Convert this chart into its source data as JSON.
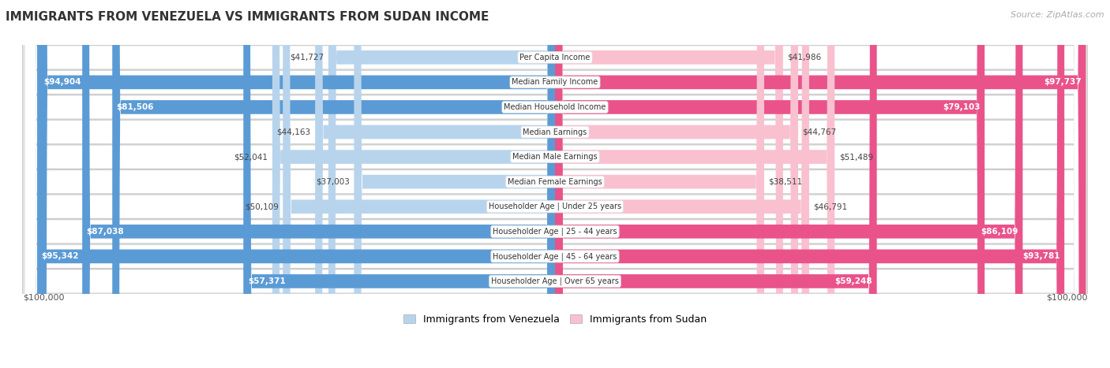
{
  "title": "IMMIGRANTS FROM VENEZUELA VS IMMIGRANTS FROM SUDAN INCOME",
  "source": "Source: ZipAtlas.com",
  "categories": [
    "Per Capita Income",
    "Median Family Income",
    "Median Household Income",
    "Median Earnings",
    "Median Male Earnings",
    "Median Female Earnings",
    "Householder Age | Under 25 years",
    "Householder Age | 25 - 44 years",
    "Householder Age | 45 - 64 years",
    "Householder Age | Over 65 years"
  ],
  "venezuela_values": [
    41727,
    94904,
    81506,
    44163,
    52041,
    37003,
    50109,
    87038,
    95342,
    57371
  ],
  "sudan_values": [
    41986,
    97737,
    79103,
    44767,
    51489,
    38511,
    46791,
    86109,
    93781,
    59248
  ],
  "venezuela_labels": [
    "$41,727",
    "$94,904",
    "$81,506",
    "$44,163",
    "$52,041",
    "$37,003",
    "$50,109",
    "$87,038",
    "$95,342",
    "$57,371"
  ],
  "sudan_labels": [
    "$41,986",
    "$97,737",
    "$79,103",
    "$44,767",
    "$51,489",
    "$38,511",
    "$46,791",
    "$86,109",
    "$93,781",
    "$59,248"
  ],
  "max_value": 100000,
  "venezuela_color_light": "#b8d4ed",
  "venezuela_color_dark": "#5b9bd5",
  "sudan_color_light": "#f9c0d0",
  "sudan_color_dark": "#e9538a",
  "row_bg": "#e8e8e8",
  "legend_venezuela": "Immigrants from Venezuela",
  "legend_sudan": "Immigrants from Sudan",
  "x_label_left": "$100,000",
  "x_label_right": "$100,000",
  "inside_threshold": 0.55
}
